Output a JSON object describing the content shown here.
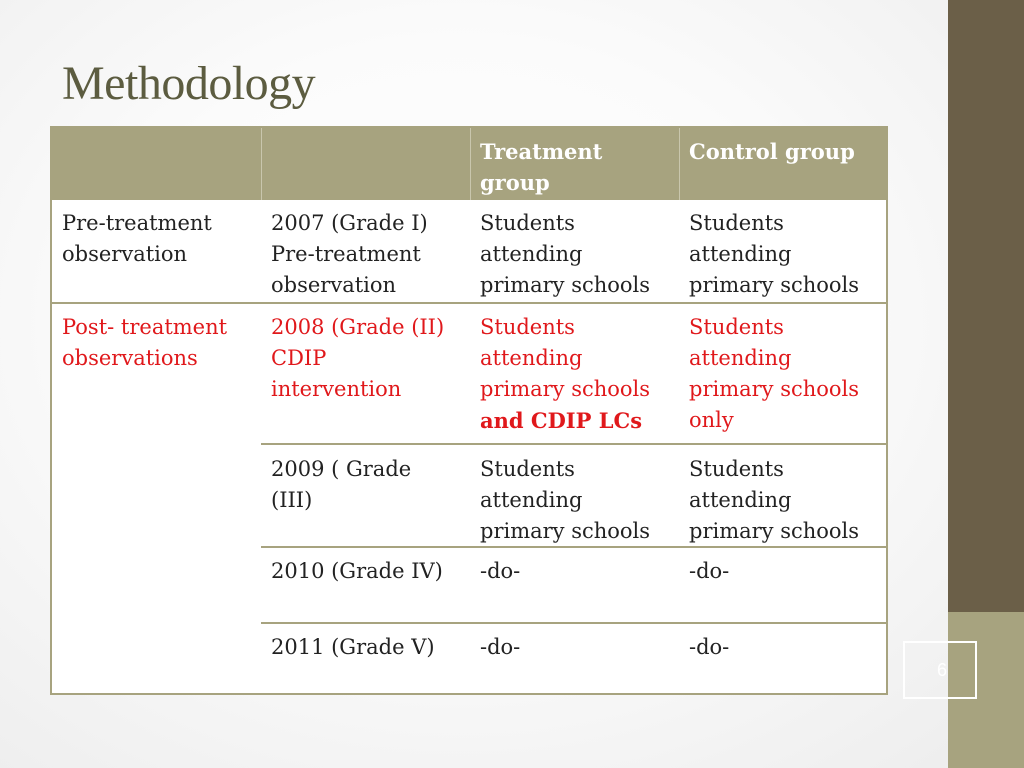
{
  "title": "Methodology",
  "slide_number": "6",
  "table": {
    "headers": [
      "",
      "",
      "Treatment\ngroup",
      "Control group"
    ],
    "pre": {
      "phase": "Pre-treatment\nobservation",
      "year": "2007 (Grade I)\nPre-treatment\nobservation",
      "treatment": "Students\nattending\nprimary schools",
      "control": "Students\nattending\nprimary schools"
    },
    "post_phase": "Post- treatment\nobservations",
    "post_2008": {
      "year": "2008 (Grade (II)\nCDIP\nintervention",
      "treatment": "Students\nattending\nprimary schools\n",
      "treatment_bold": "and CDIP LCs",
      "control": "Students\nattending\nprimary schools\nonly"
    },
    "post_2009": {
      "year": "2009 ( Grade\n(III)",
      "treatment": "Students\nattending\nprimary schools",
      "control": "Students\nattending\nprimary schools"
    },
    "post_2010": {
      "year": "2010 (Grade IV)",
      "treatment": "-do-",
      "control": "-do-"
    },
    "post_2011": {
      "year": "2011 (Grade V)",
      "treatment": "-do-",
      "control": "-do-"
    }
  },
  "colors": {
    "accent": "#a7a37f",
    "side_band": "#6b5f48",
    "title": "#5c5c40",
    "highlight_text": "#e0181b"
  }
}
